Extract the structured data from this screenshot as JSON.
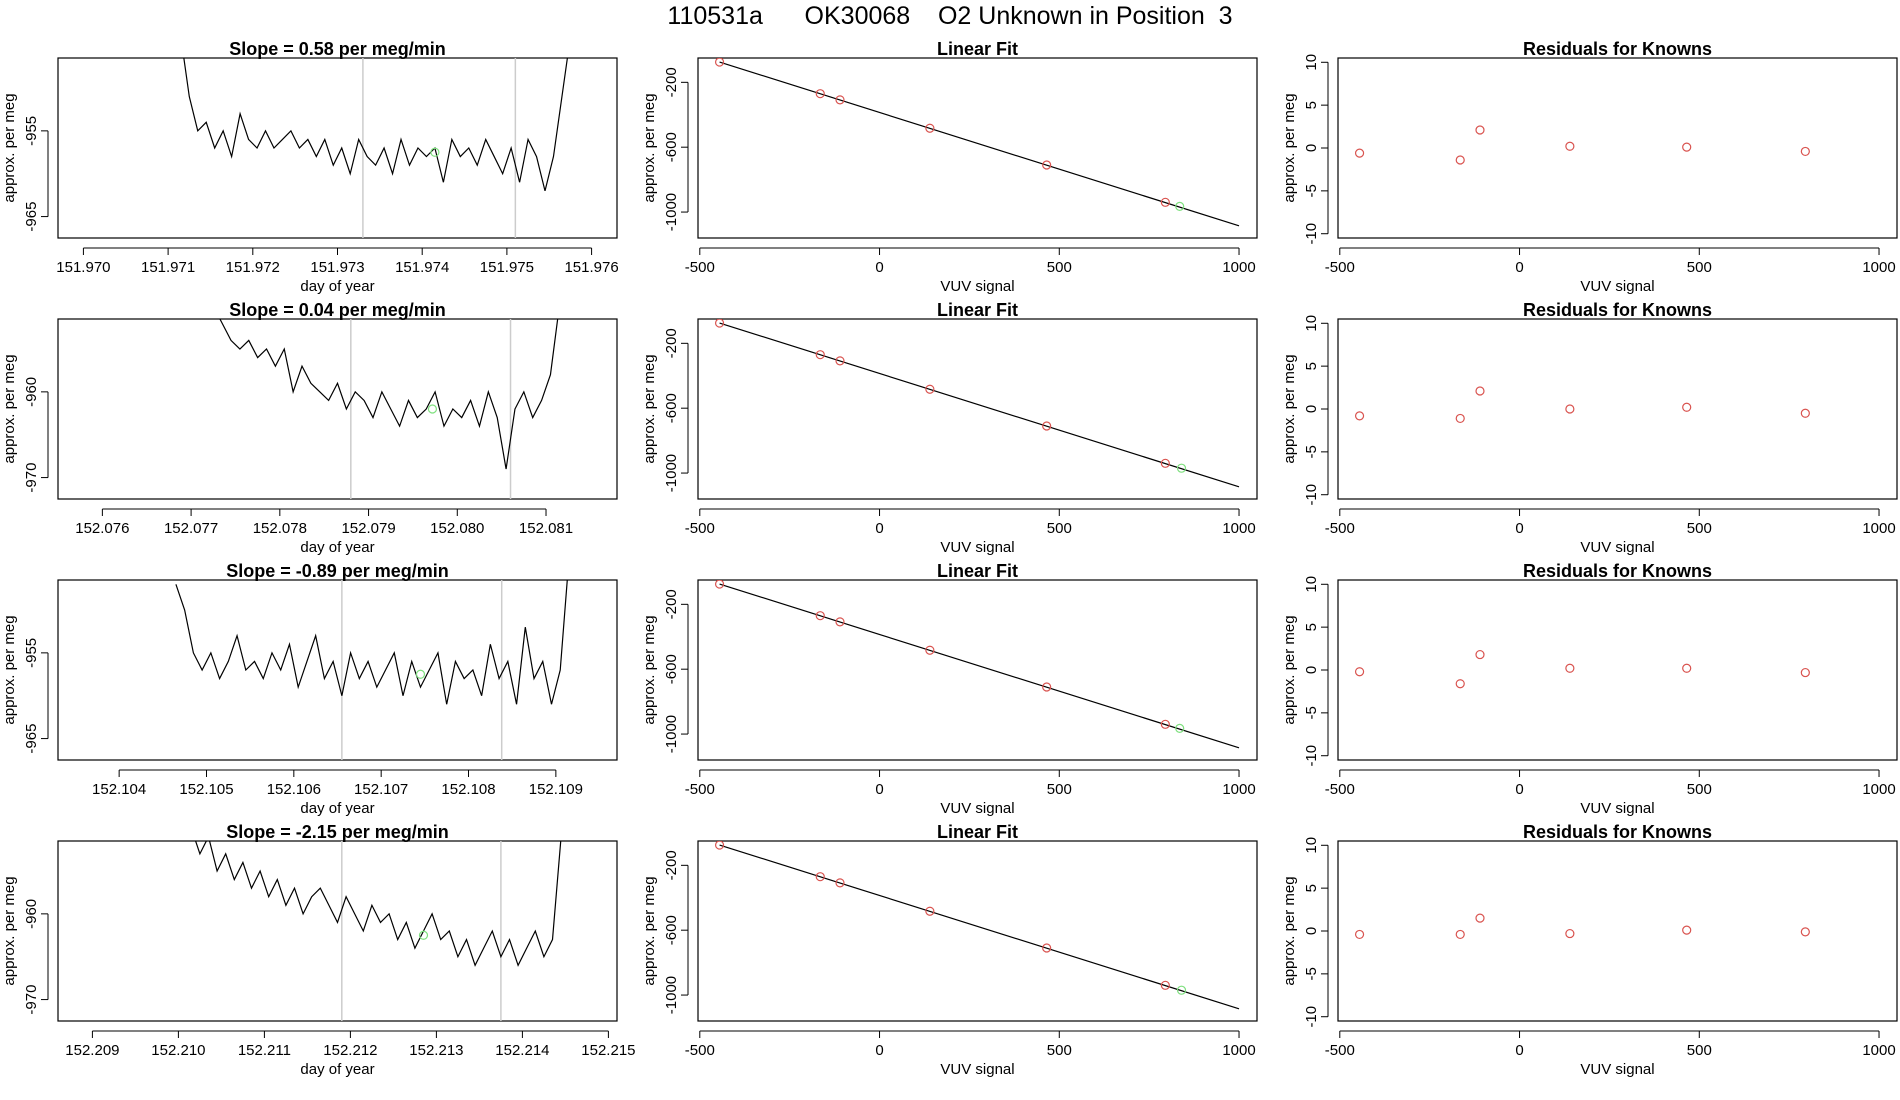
{
  "header": {
    "title": "110531a      OK30068    O2 Unknown in Position  3"
  },
  "colors": {
    "known_point": "#d9534f",
    "unknown_point": "#7fe07f",
    "fit_line": "#000000",
    "marker_line": "#cccccc"
  },
  "chart_data": [
    {
      "type": "line",
      "row": 0,
      "panel": "trace",
      "title": "Slope =  0.58  per meg/min",
      "xlabel": "day of year",
      "ylabel": "approx. per meg",
      "xlim": [
        151.9697,
        151.9763
      ],
      "ylim": [
        -967.5,
        -946.5
      ],
      "xticks": [
        "151.970",
        "151.971",
        "151.972",
        "151.973",
        "151.974",
        "151.975",
        "151.976"
      ],
      "xtick_values": [
        151.97,
        151.971,
        151.972,
        151.973,
        151.974,
        151.975,
        151.976
      ],
      "yticks": [
        "-955",
        "-965"
      ],
      "ytick_values": [
        -955,
        -965
      ],
      "vlines": [
        151.9733,
        151.9751
      ],
      "x": [
        151.97115,
        151.97125,
        151.97135,
        151.97145,
        151.97155,
        151.97165,
        151.97175,
        151.97185,
        151.97195,
        151.97205,
        151.97215,
        151.97225,
        151.97235,
        151.97245,
        151.97255,
        151.97265,
        151.97275,
        151.97285,
        151.97295,
        151.97305,
        151.97315,
        151.97325,
        151.97335,
        151.97345,
        151.97355,
        151.97365,
        151.97375,
        151.97385,
        151.97395,
        151.97405,
        151.97415,
        151.97425,
        151.97435,
        151.97445,
        151.97455,
        151.97465,
        151.97475,
        151.97485,
        151.97495,
        151.97505,
        151.97515,
        151.97525,
        151.97535,
        151.97545,
        151.97555,
        151.97565,
        151.97575
      ],
      "y": [
        -944,
        -951,
        -955,
        -954,
        -957,
        -955,
        -958,
        -953,
        -956,
        -957,
        -955,
        -957,
        -956,
        -955,
        -957,
        -956,
        -958,
        -956,
        -959,
        -957,
        -960,
        -956,
        -958,
        -959,
        -957,
        -960,
        -956,
        -959,
        -957,
        -958,
        -957,
        -961,
        -956,
        -958,
        -957,
        -959,
        -956,
        -958,
        -960,
        -957,
        -961,
        -956,
        -958,
        -962,
        -958,
        -951,
        -944
      ],
      "unknown_point": {
        "x": 151.97415,
        "y": -957.5
      }
    },
    {
      "type": "scatter",
      "row": 0,
      "panel": "fit",
      "title": "Linear Fit",
      "xlabel": "VUV signal",
      "ylabel": "approx. per meg",
      "xlim": [
        -505,
        1050
      ],
      "ylim": [
        -1160,
        -50
      ],
      "xticks": [
        "-500",
        "0",
        "500",
        "1000"
      ],
      "xtick_values": [
        -500,
        0,
        500,
        1000
      ],
      "yticks": [
        "-200",
        "-600",
        "-1000"
      ],
      "ytick_values": [
        -200,
        -600,
        -1000
      ],
      "fit_line": {
        "x": [
          -445,
          1000
        ],
        "y": [
          -75,
          -1085
        ]
      },
      "known_x": [
        -445,
        -165,
        -110,
        140,
        465,
        795
      ],
      "known_y": [
        -75,
        -270,
        -308,
        -483,
        -710,
        -940
      ],
      "unknown_x": [
        835
      ],
      "unknown_y": [
        -965
      ]
    },
    {
      "type": "scatter",
      "row": 0,
      "panel": "residuals",
      "title": "Residuals for Knowns",
      "xlabel": "VUV signal",
      "ylabel": "approx. per meg",
      "xlim": [
        -505,
        1050
      ],
      "ylim": [
        -10.5,
        10.5
      ],
      "xticks": [
        "-500",
        "0",
        "500",
        "1000"
      ],
      "xtick_values": [
        -500,
        0,
        500,
        1000
      ],
      "yticks": [
        "-10",
        "-5",
        "0",
        "5",
        "10"
      ],
      "ytick_values": [
        -10,
        -5,
        0,
        5,
        10
      ],
      "x": [
        -445,
        -165,
        -110,
        140,
        465,
        795
      ],
      "y": [
        -0.6,
        -1.4,
        2.1,
        0.2,
        0.1,
        -0.4
      ]
    },
    {
      "type": "line",
      "row": 1,
      "panel": "trace",
      "title": "Slope =  0.04  per meg/min",
      "xlabel": "day of year",
      "ylabel": "approx. per meg",
      "xlim": [
        152.0755,
        152.0818
      ],
      "ylim": [
        -972.5,
        -951.5
      ],
      "xticks": [
        "152.076",
        "152.077",
        "152.078",
        "152.079",
        "152.080",
        "152.081"
      ],
      "xtick_values": [
        152.076,
        152.077,
        152.078,
        152.079,
        152.08,
        152.081
      ],
      "yticks": [
        "-960",
        "-970"
      ],
      "ytick_values": [
        -960,
        -970
      ],
      "vlines": [
        152.0788,
        152.0806
      ],
      "x": [
        152.07725,
        152.07735,
        152.07745,
        152.07755,
        152.07765,
        152.07775,
        152.07785,
        152.07795,
        152.07805,
        152.07815,
        152.07825,
        152.07835,
        152.07845,
        152.07855,
        152.07865,
        152.07875,
        152.07885,
        152.07895,
        152.07905,
        152.07915,
        152.07925,
        152.07935,
        152.07945,
        152.07955,
        152.07965,
        152.07975,
        152.07985,
        152.07995,
        152.08005,
        152.08015,
        152.08025,
        152.08035,
        152.08045,
        152.08055,
        152.08065,
        152.08075,
        152.08085,
        152.08095,
        152.08105,
        152.08115
      ],
      "y": [
        -950,
        -952,
        -954,
        -955,
        -954,
        -956,
        -955,
        -957,
        -955,
        -960,
        -957,
        -959,
        -960,
        -961,
        -959,
        -962,
        -960,
        -961,
        -963,
        -960,
        -962,
        -964,
        -961,
        -963,
        -962,
        -960,
        -964,
        -962,
        -963,
        -961,
        -964,
        -960,
        -963,
        -969,
        -962,
        -960,
        -963,
        -961,
        -958,
        -950
      ],
      "unknown_point": {
        "x": 152.07972,
        "y": -962
      }
    },
    {
      "type": "scatter",
      "row": 1,
      "panel": "fit",
      "title": "Linear Fit",
      "xlabel": "VUV signal",
      "ylabel": "approx. per meg",
      "xlim": [
        -505,
        1050
      ],
      "ylim": [
        -1160,
        -50
      ],
      "xticks": [
        "-500",
        "0",
        "500",
        "1000"
      ],
      "xtick_values": [
        -500,
        0,
        500,
        1000
      ],
      "yticks": [
        "-200",
        "-600",
        "-1000"
      ],
      "ytick_values": [
        -200,
        -600,
        -1000
      ],
      "fit_line": {
        "x": [
          -445,
          1000
        ],
        "y": [
          -75,
          -1085
        ]
      },
      "known_x": [
        -445,
        -165,
        -110,
        140,
        465,
        795
      ],
      "known_y": [
        -75,
        -270,
        -308,
        -483,
        -710,
        -940
      ],
      "unknown_x": [
        840
      ],
      "unknown_y": [
        -970
      ]
    },
    {
      "type": "scatter",
      "row": 1,
      "panel": "residuals",
      "title": "Residuals for Knowns",
      "xlabel": "VUV signal",
      "ylabel": "approx. per meg",
      "xlim": [
        -505,
        1050
      ],
      "ylim": [
        -10.5,
        10.5
      ],
      "xticks": [
        "-500",
        "0",
        "500",
        "1000"
      ],
      "xtick_values": [
        -500,
        0,
        500,
        1000
      ],
      "yticks": [
        "-10",
        "-5",
        "0",
        "5",
        "10"
      ],
      "ytick_values": [
        -10,
        -5,
        0,
        5,
        10
      ],
      "x": [
        -445,
        -165,
        -110,
        140,
        465,
        795
      ],
      "y": [
        -0.8,
        -1.1,
        2.1,
        0.0,
        0.2,
        -0.5
      ]
    },
    {
      "type": "line",
      "row": 2,
      "panel": "trace",
      "title": "Slope =  -0.89  per meg/min",
      "xlabel": "day of year",
      "ylabel": "approx. per meg",
      "xlim": [
        152.1033,
        152.1097
      ],
      "ylim": [
        -967.5,
        -946.5
      ],
      "xticks": [
        "152.104",
        "152.105",
        "152.106",
        "152.107",
        "152.108",
        "152.109"
      ],
      "xtick_values": [
        152.104,
        152.105,
        152.106,
        152.107,
        152.108,
        152.109
      ],
      "yticks": [
        "-955",
        "-965"
      ],
      "ytick_values": [
        -955,
        -965
      ],
      "vlines": [
        152.10655,
        152.10838
      ],
      "x": [
        152.10465,
        152.10475,
        152.10485,
        152.10495,
        152.10505,
        152.10515,
        152.10525,
        152.10535,
        152.10545,
        152.10555,
        152.10565,
        152.10575,
        152.10585,
        152.10595,
        152.10605,
        152.10615,
        152.10625,
        152.10635,
        152.10645,
        152.10655,
        152.10665,
        152.10675,
        152.10685,
        152.10695,
        152.10705,
        152.10715,
        152.10725,
        152.10735,
        152.10745,
        152.10755,
        152.10765,
        152.10775,
        152.10785,
        152.10795,
        152.10805,
        152.10815,
        152.10825,
        152.10835,
        152.10845,
        152.10855,
        152.10865,
        152.10875,
        152.10885,
        152.10895,
        152.10905,
        152.10915
      ],
      "y": [
        -947,
        -950,
        -955,
        -957,
        -955,
        -958,
        -956,
        -953,
        -957,
        -956,
        -958,
        -955,
        -957,
        -954,
        -959,
        -956,
        -953,
        -958,
        -956,
        -960,
        -955,
        -958,
        -956,
        -959,
        -957,
        -955,
        -960,
        -956,
        -959,
        -957,
        -955,
        -961,
        -956,
        -958,
        -957,
        -960,
        -954,
        -958,
        -956,
        -961,
        -952,
        -958,
        -956,
        -961,
        -957,
        -944
      ],
      "unknown_point": {
        "x": 152.10745,
        "y": -957.5
      }
    },
    {
      "type": "scatter",
      "row": 2,
      "panel": "fit",
      "title": "Linear Fit",
      "xlabel": "VUV signal",
      "ylabel": "approx. per meg",
      "xlim": [
        -505,
        1050
      ],
      "ylim": [
        -1160,
        -50
      ],
      "xticks": [
        "-500",
        "0",
        "500",
        "1000"
      ],
      "xtick_values": [
        -500,
        0,
        500,
        1000
      ],
      "yticks": [
        "-200",
        "-600",
        "-1000"
      ],
      "ytick_values": [
        -200,
        -600,
        -1000
      ],
      "fit_line": {
        "x": [
          -445,
          1000
        ],
        "y": [
          -75,
          -1085
        ]
      },
      "known_x": [
        -445,
        -165,
        -110,
        140,
        465,
        795
      ],
      "known_y": [
        -75,
        -270,
        -308,
        -483,
        -710,
        -940
      ],
      "unknown_x": [
        835
      ],
      "unknown_y": [
        -965
      ]
    },
    {
      "type": "scatter",
      "row": 2,
      "panel": "residuals",
      "title": "Residuals for Knowns",
      "xlabel": "VUV signal",
      "ylabel": "approx. per meg",
      "xlim": [
        -505,
        1050
      ],
      "ylim": [
        -10.5,
        10.5
      ],
      "xticks": [
        "-500",
        "0",
        "500",
        "1000"
      ],
      "xtick_values": [
        -500,
        0,
        500,
        1000
      ],
      "yticks": [
        "-10",
        "-5",
        "0",
        "5",
        "10"
      ],
      "ytick_values": [
        -10,
        -5,
        0,
        5,
        10
      ],
      "x": [
        -445,
        -165,
        -110,
        140,
        465,
        795
      ],
      "y": [
        -0.2,
        -1.6,
        1.8,
        0.2,
        0.2,
        -0.3
      ]
    },
    {
      "type": "line",
      "row": 3,
      "panel": "trace",
      "title": "Slope =  -2.15  per meg/min",
      "xlabel": "day of year",
      "ylabel": "approx. per meg",
      "xlim": [
        152.2086,
        152.2151
      ],
      "ylim": [
        -972.5,
        -951.5
      ],
      "xticks": [
        "152.209",
        "152.210",
        "152.211",
        "152.212",
        "152.213",
        "152.214",
        "152.215"
      ],
      "xtick_values": [
        152.209,
        152.21,
        152.211,
        152.212,
        152.213,
        152.214,
        152.215
      ],
      "yticks": [
        "-960",
        "-970"
      ],
      "ytick_values": [
        -960,
        -970
      ],
      "vlines": [
        152.2119,
        152.21375
      ],
      "x": [
        152.21015,
        152.21025,
        152.21035,
        152.21045,
        152.21055,
        152.21065,
        152.21075,
        152.21085,
        152.21095,
        152.21105,
        152.21115,
        152.21125,
        152.21135,
        152.21145,
        152.21155,
        152.21165,
        152.21175,
        152.21185,
        152.21195,
        152.21205,
        152.21215,
        152.21225,
        152.21235,
        152.21245,
        152.21255,
        152.21265,
        152.21275,
        152.21285,
        152.21295,
        152.21305,
        152.21315,
        152.21325,
        152.21335,
        152.21345,
        152.21355,
        152.21365,
        152.21375,
        152.21385,
        152.21395,
        152.21405,
        152.21415,
        152.21425,
        152.21435,
        152.21445
      ],
      "y": [
        -950,
        -953,
        -951,
        -955,
        -953,
        -956,
        -954,
        -957,
        -955,
        -958,
        -956,
        -959,
        -957,
        -960,
        -958,
        -957,
        -959,
        -961,
        -958,
        -960,
        -962,
        -959,
        -961,
        -960,
        -963,
        -961,
        -964,
        -962,
        -960,
        -963,
        -962,
        -965,
        -963,
        -966,
        -964,
        -962,
        -965,
        -963,
        -966,
        -964,
        -962,
        -965,
        -963,
        -951
      ],
      "unknown_point": {
        "x": 152.21285,
        "y": -962.5
      }
    },
    {
      "type": "scatter",
      "row": 3,
      "panel": "fit",
      "title": "Linear Fit",
      "xlabel": "VUV signal",
      "ylabel": "approx. per meg",
      "xlim": [
        -505,
        1050
      ],
      "ylim": [
        -1160,
        -50
      ],
      "xticks": [
        "-500",
        "0",
        "500",
        "1000"
      ],
      "xtick_values": [
        -500,
        0,
        500,
        1000
      ],
      "yticks": [
        "-200",
        "-600",
        "-1000"
      ],
      "ytick_values": [
        -200,
        -600,
        -1000
      ],
      "fit_line": {
        "x": [
          -445,
          1000
        ],
        "y": [
          -75,
          -1085
        ]
      },
      "known_x": [
        -445,
        -165,
        -110,
        140,
        465,
        795
      ],
      "known_y": [
        -75,
        -270,
        -308,
        -483,
        -710,
        -940
      ],
      "unknown_x": [
        840
      ],
      "unknown_y": [
        -970
      ]
    },
    {
      "type": "scatter",
      "row": 3,
      "panel": "residuals",
      "title": "Residuals for Knowns",
      "xlabel": "VUV signal",
      "ylabel": "approx. per meg",
      "xlim": [
        -505,
        1050
      ],
      "ylim": [
        -10.5,
        10.5
      ],
      "xticks": [
        "-500",
        "0",
        "500",
        "1000"
      ],
      "xtick_values": [
        -500,
        0,
        500,
        1000
      ],
      "yticks": [
        "-10",
        "-5",
        "0",
        "5",
        "10"
      ],
      "ytick_values": [
        -10,
        -5,
        0,
        5,
        10
      ],
      "x": [
        -445,
        -165,
        -110,
        140,
        465,
        795
      ],
      "y": [
        -0.4,
        -0.4,
        1.5,
        -0.3,
        0.1,
        -0.1
      ]
    }
  ]
}
